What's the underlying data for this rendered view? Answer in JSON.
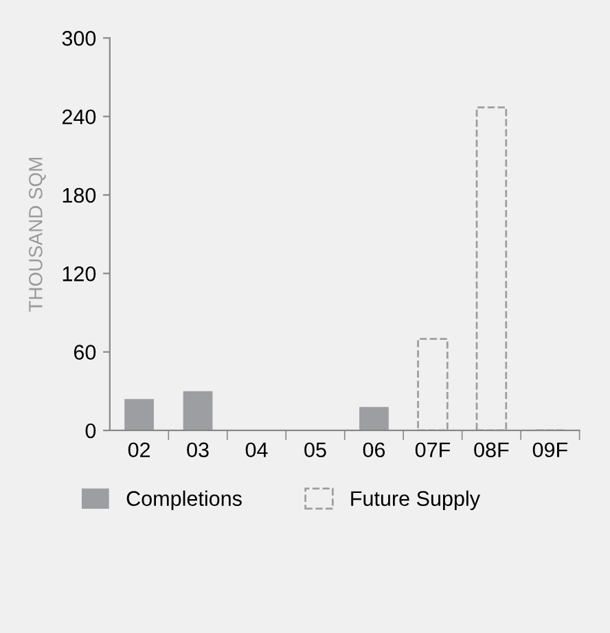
{
  "chart_data": {
    "type": "bar",
    "ylabel": "THOUSAND SQM",
    "categories": [
      "02",
      "03",
      "04",
      "05",
      "06",
      "07F",
      "08F",
      "09F"
    ],
    "series": [
      {
        "name": "Completions",
        "color": "#9d9ea1",
        "values": [
          24,
          30,
          0,
          0,
          18,
          null,
          null,
          null
        ]
      },
      {
        "name": "Future Supply",
        "color": "#9d9ea1",
        "line_style": "dashed",
        "values": [
          null,
          null,
          null,
          null,
          null,
          70,
          247,
          0
        ]
      }
    ],
    "ylim": [
      0,
      300
    ],
    "yticks": [
      0,
      60,
      120,
      180,
      240,
      300
    ],
    "grid": false,
    "legend": "bottom"
  }
}
